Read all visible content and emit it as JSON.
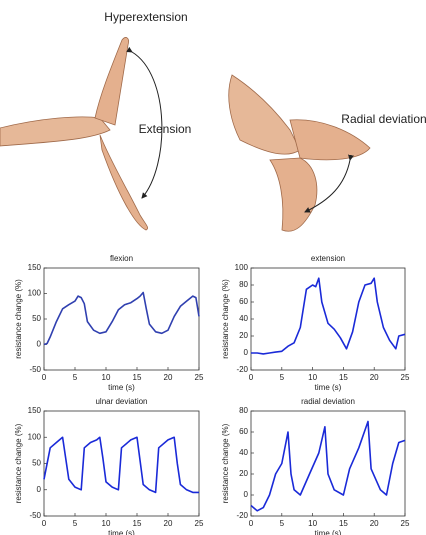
{
  "illustration": {
    "labels": [
      "Hyperextension",
      "Extension",
      "Radial deviation"
    ]
  },
  "chart_data": [
    {
      "type": "line",
      "title": "flexion",
      "xlabel": "time (s)",
      "ylabel": "resistance change (%)",
      "color": "#3040b0",
      "x": [
        0,
        0.5,
        1,
        2,
        3,
        4,
        5,
        5.5,
        6,
        6.5,
        7,
        8,
        9,
        10,
        11,
        12,
        13,
        14,
        15,
        15.5,
        16,
        16.5,
        17,
        18,
        19,
        20,
        21,
        22,
        23,
        24,
        24.5,
        25
      ],
      "values": [
        0,
        2,
        15,
        45,
        70,
        78,
        85,
        95,
        92,
        80,
        45,
        28,
        22,
        25,
        45,
        68,
        78,
        82,
        90,
        95,
        102,
        70,
        40,
        25,
        22,
        28,
        55,
        75,
        85,
        95,
        92,
        55
      ],
      "xlim": [
        0,
        25
      ],
      "xticks": [
        0,
        5,
        10,
        15,
        20,
        25
      ],
      "ylim": [
        -50,
        150
      ],
      "yticks": [
        -50,
        0,
        50,
        100,
        150
      ]
    },
    {
      "type": "line",
      "title": "extension",
      "xlabel": "time (s)",
      "ylabel": "resistance change (%)",
      "color": "#1a2ad8",
      "x": [
        0,
        1,
        2,
        3,
        4,
        5,
        5.5,
        6,
        7,
        8,
        9,
        10,
        10.5,
        11,
        11.5,
        12.5,
        13.5,
        14.5,
        15.5,
        16.5,
        17.5,
        18.5,
        19.5,
        20,
        20.5,
        21.5,
        22.5,
        23.5,
        24,
        25
      ],
      "values": [
        0,
        0,
        -1,
        0,
        1,
        2,
        5,
        8,
        12,
        30,
        75,
        80,
        78,
        88,
        60,
        35,
        28,
        18,
        5,
        25,
        60,
        80,
        82,
        88,
        60,
        30,
        15,
        5,
        20,
        22
      ],
      "xlim": [
        0,
        25
      ],
      "xticks": [
        0,
        5,
        10,
        15,
        20,
        25
      ],
      "ylim": [
        -20,
        100
      ],
      "yticks": [
        -20,
        0,
        20,
        40,
        60,
        80,
        100
      ]
    },
    {
      "type": "line",
      "title": "ulnar deviation",
      "xlabel": "time (s)",
      "ylabel": "resistance change (%)",
      "color": "#1a2ad8",
      "x": [
        0,
        1,
        2,
        3,
        3.5,
        4,
        5,
        6,
        6.5,
        7.5,
        8.5,
        9,
        9.5,
        10,
        11,
        12,
        12.5,
        14,
        15,
        15.5,
        16,
        17,
        18,
        18.5,
        20,
        21,
        21.5,
        22,
        23,
        24,
        25
      ],
      "values": [
        20,
        80,
        90,
        100,
        60,
        20,
        5,
        0,
        80,
        90,
        95,
        100,
        60,
        15,
        5,
        0,
        80,
        95,
        100,
        55,
        10,
        0,
        -5,
        80,
        95,
        100,
        50,
        10,
        0,
        -5,
        -5
      ],
      "xlim": [
        0,
        25
      ],
      "xticks": [
        0,
        5,
        10,
        15,
        20,
        25
      ],
      "ylim": [
        -50,
        150
      ],
      "yticks": [
        -50,
        0,
        50,
        100,
        150
      ]
    },
    {
      "type": "line",
      "title": "radial deviation",
      "xlabel": "time (s)",
      "ylabel": "resistance change (%)",
      "color": "#1a2ad8",
      "x": [
        0,
        1,
        2,
        3,
        4,
        5,
        6,
        6.5,
        7,
        8,
        9.5,
        11,
        12,
        12.5,
        13.5,
        15,
        16,
        17.5,
        19,
        19.5,
        21,
        22,
        23,
        24,
        25
      ],
      "values": [
        -10,
        -15,
        -12,
        0,
        20,
        30,
        60,
        20,
        5,
        0,
        20,
        40,
        65,
        20,
        5,
        0,
        25,
        45,
        70,
        25,
        5,
        0,
        30,
        50,
        52
      ],
      "xlim": [
        0,
        25
      ],
      "xticks": [
        0,
        5,
        10,
        15,
        20,
        25
      ],
      "ylim": [
        -20,
        80
      ],
      "yticks": [
        -20,
        0,
        20,
        40,
        60,
        80
      ]
    }
  ]
}
